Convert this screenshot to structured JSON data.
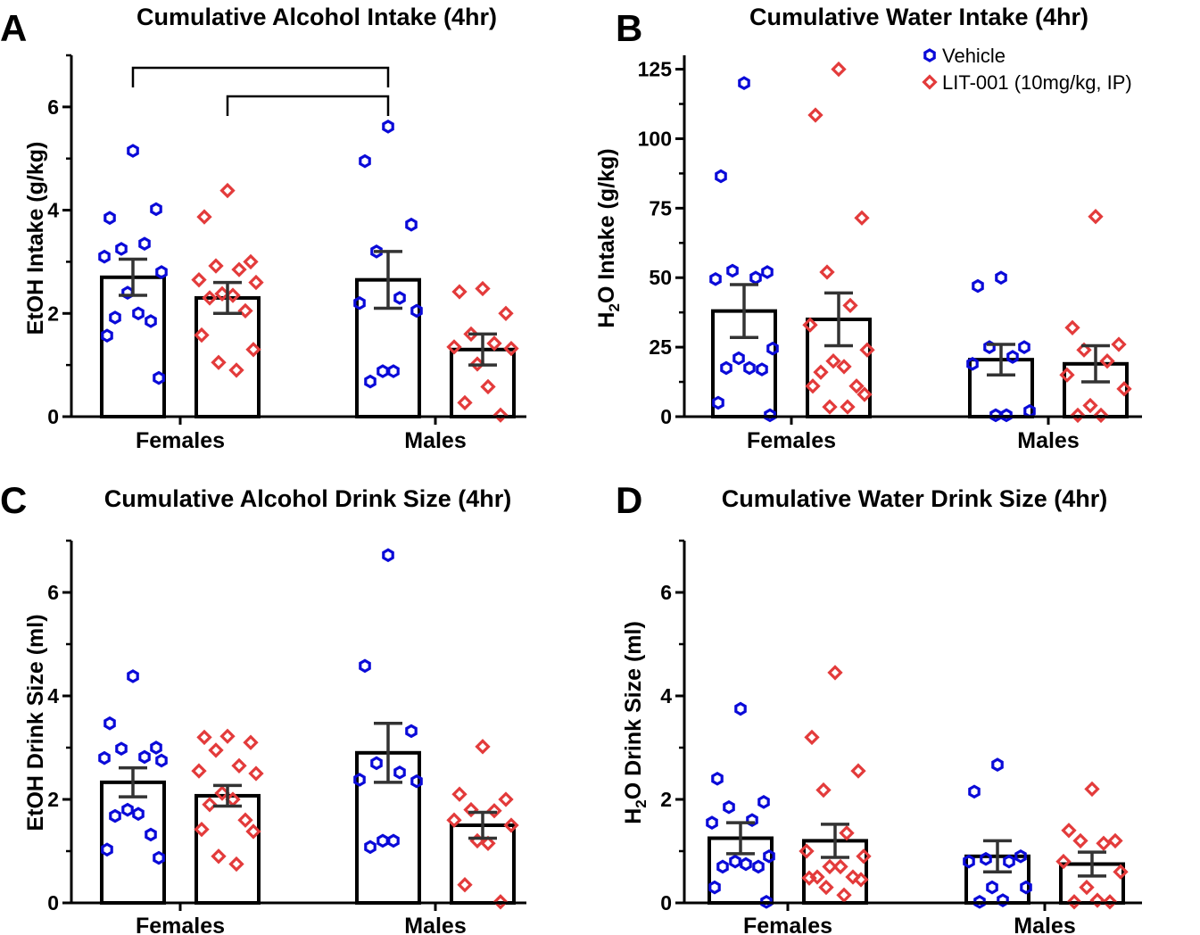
{
  "colors": {
    "vehicle": "#0a0ad8",
    "lit001": "#e33b3b",
    "axis": "#000000",
    "error": "#333333"
  },
  "legend": {
    "vehicle_label": "Vehicle",
    "lit001_label": "LIT-001 (10mg/kg, IP)"
  },
  "chart_data": [
    {
      "panel": "A",
      "type": "bar",
      "title": "Cumulative Alcohol Intake (4hr)",
      "ylabel": "EtOH Intake (g/kg)",
      "ylim": [
        0,
        7
      ],
      "yticks": [
        0,
        2,
        4,
        6
      ],
      "categories": [
        "Females",
        "Males"
      ],
      "series": [
        {
          "name": "Vehicle",
          "means": [
            2.7,
            2.65
          ],
          "sem": [
            0.35,
            0.55
          ],
          "points": [
            [
              5.15,
              3.85,
              4.02,
              3.25,
              3.35,
              3.1,
              2.8,
              2.4,
              2.0,
              1.92,
              1.85,
              1.57,
              0.75
            ],
            [
              5.62,
              4.95,
              3.72,
              3.2,
              2.3,
              2.2,
              2.05,
              0.88,
              0.88,
              0.68
            ]
          ]
        },
        {
          "name": "LIT-001 (10mg/kg, IP)",
          "means": [
            2.3,
            1.3
          ],
          "sem": [
            0.3,
            0.3
          ],
          "points": [
            [
              4.38,
              3.87,
              3.0,
              2.92,
              2.85,
              2.65,
              2.6,
              2.38,
              2.35,
              2.3,
              2.05,
              1.58,
              1.3,
              1.05,
              0.9
            ],
            [
              2.48,
              2.42,
              2.0,
              1.6,
              1.42,
              1.35,
              1.32,
              1.02,
              0.58,
              0.27,
              0.03
            ]
          ]
        }
      ],
      "brackets": true
    },
    {
      "panel": "B",
      "type": "bar",
      "title": "Cumulative Water Intake (4hr)",
      "ylabel": "H2O Intake (g/kg)",
      "ylim": [
        0,
        130
      ],
      "yticks": [
        0,
        25,
        50,
        75,
        100,
        125
      ],
      "categories": [
        "Females",
        "Males"
      ],
      "series": [
        {
          "name": "Vehicle",
          "means": [
            38,
            20.5
          ],
          "sem": [
            9.5,
            5.5
          ],
          "points": [
            [
              120,
              86.5,
              52,
              52.5,
              50,
              49.5,
              24.5,
              21,
              17.5,
              17.5,
              17,
              5,
              0.5
            ],
            [
              50,
              47,
              25,
              25,
              21.5,
              19,
              2,
              0.5,
              0.5
            ]
          ]
        },
        {
          "name": "LIT-001 (10mg/kg, IP)",
          "means": [
            35,
            19
          ],
          "sem": [
            9.5,
            6.5
          ],
          "points": [
            [
              125,
              108.5,
              71.5,
              52,
              40,
              33,
              24,
              20,
              18,
              16,
              11,
              11,
              8,
              3.5,
              3.5
            ],
            [
              72,
              32,
              26,
              24,
              20,
              15,
              10,
              4,
              0.5,
              0.5
            ]
          ]
        }
      ],
      "legend": true
    },
    {
      "panel": "C",
      "type": "bar",
      "title": "Cumulative Alcohol Drink Size (4hr)",
      "ylabel": "EtOH Drink Size (ml)",
      "ylim": [
        0,
        7
      ],
      "yticks": [
        0,
        2,
        4,
        6
      ],
      "categories": [
        "Females",
        "Males"
      ],
      "series": [
        {
          "name": "Vehicle",
          "means": [
            2.33,
            2.9
          ],
          "sem": [
            0.28,
            0.57
          ],
          "points": [
            [
              4.38,
              3.47,
              3.0,
              2.98,
              2.82,
              2.8,
              2.75,
              1.8,
              1.72,
              1.68,
              1.32,
              1.03,
              0.87
            ],
            [
              6.72,
              4.58,
              3.32,
              2.7,
              2.52,
              2.38,
              2.35,
              1.2,
              1.2,
              1.08
            ]
          ]
        },
        {
          "name": "LIT-001 (10mg/kg, IP)",
          "means": [
            2.07,
            1.5
          ],
          "sem": [
            0.2,
            0.25
          ],
          "points": [
            [
              3.22,
              3.2,
              3.1,
              2.95,
              2.65,
              2.55,
              2.5,
              2.12,
              2.0,
              1.9,
              1.6,
              1.42,
              1.38,
              0.9,
              0.75
            ],
            [
              3.02,
              2.1,
              2.0,
              1.8,
              1.78,
              1.6,
              1.5,
              1.2,
              1.15,
              0.35,
              0.02
            ]
          ]
        }
      ]
    },
    {
      "panel": "D",
      "type": "bar",
      "title": "Cumulative Water Drink Size (4hr)",
      "ylabel": "H2O Drink Size (ml)",
      "ylim": [
        0,
        7
      ],
      "yticks": [
        0,
        2,
        4,
        6
      ],
      "categories": [
        "Females",
        "Males"
      ],
      "series": [
        {
          "name": "Vehicle",
          "means": [
            1.25,
            0.9
          ],
          "sem": [
            0.3,
            0.3
          ],
          "points": [
            [
              3.75,
              2.4,
              1.95,
              1.85,
              1.6,
              1.55,
              0.9,
              0.8,
              0.75,
              0.7,
              0.7,
              0.3,
              0.02
            ],
            [
              2.67,
              2.15,
              0.9,
              0.85,
              0.8,
              0.8,
              0.3,
              0.3,
              0.05,
              0.02
            ]
          ]
        },
        {
          "name": "LIT-001 (10mg/kg, IP)",
          "means": [
            1.2,
            0.75
          ],
          "sem": [
            0.32,
            0.23
          ],
          "points": [
            [
              4.45,
              3.2,
              2.55,
              2.18,
              1.35,
              1.0,
              0.9,
              0.7,
              0.7,
              0.5,
              0.5,
              0.48,
              0.45,
              0.3,
              0.15
            ],
            [
              2.2,
              1.4,
              1.2,
              1.2,
              1.15,
              0.8,
              0.6,
              0.3,
              0.05,
              0.02,
              0.02
            ]
          ]
        }
      ]
    }
  ]
}
